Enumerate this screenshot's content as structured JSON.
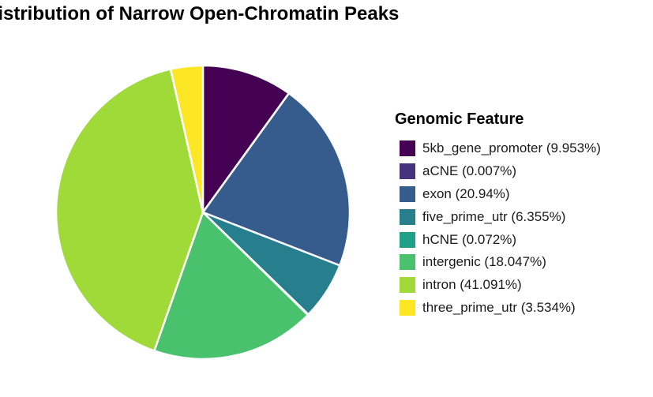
{
  "chart_data": {
    "type": "pie",
    "title": "Distribution of Narrow Open-Chromatin Peaks",
    "legend_title": "Genomic Feature",
    "legend_position": "right",
    "start_angle_deg": 0,
    "direction": "clockwise",
    "slices": [
      {
        "label": "5kb_gene_promoter (9.953%)",
        "category": "5kb_gene_promoter",
        "value": 9.953,
        "color": "#440154"
      },
      {
        "label": "aCNE (0.007%)",
        "category": "aCNE",
        "value": 0.007,
        "color": "#46337E"
      },
      {
        "label": "exon (20.94%)",
        "category": "exon",
        "value": 20.94,
        "color": "#365C8D"
      },
      {
        "label": "five_prime_utr (6.355%)",
        "category": "five_prime_utr",
        "value": 6.355,
        "color": "#277F8E"
      },
      {
        "label": "hCNE (0.072%)",
        "category": "hCNE",
        "value": 0.072,
        "color": "#1FA187"
      },
      {
        "label": "intergenic (18.047%)",
        "category": "intergenic",
        "value": 18.047,
        "color": "#4AC16D"
      },
      {
        "label": "intron (41.091%)",
        "category": "intron",
        "value": 41.091,
        "color": "#A0DA39"
      },
      {
        "label": "three_prime_utr (3.534%)",
        "category": "three_prime_utr",
        "value": 3.534,
        "color": "#FDE725"
      }
    ]
  }
}
